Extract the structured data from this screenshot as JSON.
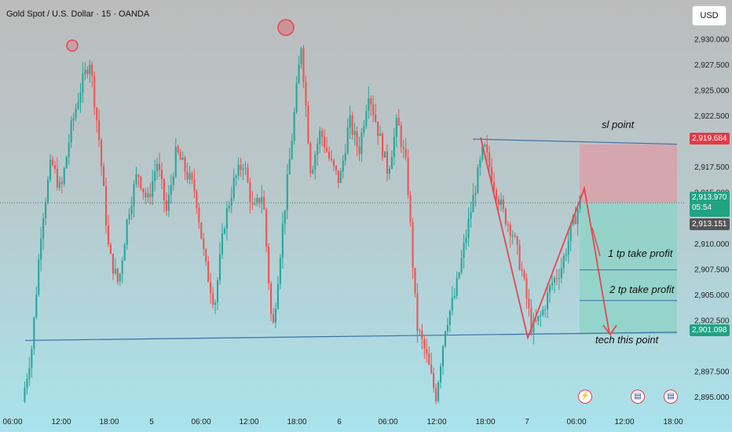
{
  "title": "Gold Spot / U.S. Dollar · 15 · OANDA",
  "currency_button": "USD",
  "colors": {
    "up": "#26a69a",
    "down": "#ef5350",
    "level_line": "#3c6fa5",
    "sl_zone": "#d9a0a8",
    "tp_zone": "#8fd3c8",
    "drawn": "#e5474f"
  },
  "price_tags": {
    "sl": "2,919.684",
    "current": "2,913.970",
    "countdown": "05:54",
    "last": "2,913.151",
    "tp": "2,901.098"
  },
  "annotations": {
    "sl": "sl point",
    "tp1": "1 tp take profit",
    "tp2": "2 tp take profit",
    "tech": "tech this point"
  },
  "events": [
    "lightning-icon",
    "us-flag-icon",
    "us-flag-icon"
  ],
  "chart_data": {
    "type": "candlestick",
    "symbol": "Gold Spot / U.S. Dollar",
    "interval": "15",
    "source": "OANDA",
    "x_tick_labels": [
      "06:00",
      "12:00",
      "18:00",
      "5",
      "06:00",
      "12:00",
      "18:00",
      "6",
      "06:00",
      "12:00",
      "18:00",
      "7",
      "06:00",
      "12:00",
      "18:00"
    ],
    "y_tick_labels": [
      "2,930.000",
      "2,927.500",
      "2,925.000",
      "2,922.500",
      "2,917.500",
      "2,915.000",
      "2,910.000",
      "2,907.500",
      "2,905.000",
      "2,902.500",
      "2,897.500",
      "2,895.000"
    ],
    "ylim": [
      2894,
      2931.5
    ],
    "price_path": [
      [
        0,
        2894.5
      ],
      [
        1,
        2900
      ],
      [
        2,
        2912
      ],
      [
        3,
        2918
      ],
      [
        4,
        2915
      ],
      [
        5,
        2921
      ],
      [
        6,
        2925
      ],
      [
        7,
        2928
      ],
      [
        8,
        2920
      ],
      [
        9,
        2909
      ],
      [
        10,
        2906
      ],
      [
        11,
        2913
      ],
      [
        12,
        2917
      ],
      [
        13,
        2914
      ],
      [
        14,
        2918
      ],
      [
        15,
        2913
      ],
      [
        16,
        2919
      ],
      [
        17,
        2917
      ],
      [
        18,
        2915
      ],
      [
        19,
        2908
      ],
      [
        20,
        2904
      ],
      [
        21,
        2912
      ],
      [
        22,
        2916
      ],
      [
        23,
        2918
      ],
      [
        24,
        2913
      ],
      [
        25,
        2915
      ],
      [
        26,
        2901
      ],
      [
        27,
        2911
      ],
      [
        28,
        2920
      ],
      [
        29,
        2929.5
      ],
      [
        30,
        2917
      ],
      [
        31,
        2921
      ],
      [
        32,
        2918
      ],
      [
        33,
        2916
      ],
      [
        34,
        2922
      ],
      [
        35,
        2919
      ],
      [
        36,
        2925
      ],
      [
        37,
        2921
      ],
      [
        38,
        2917
      ],
      [
        39,
        2922
      ],
      [
        40,
        2917
      ],
      [
        41,
        2902
      ],
      [
        42,
        2899
      ],
      [
        43,
        2895
      ],
      [
        44,
        2902
      ],
      [
        45,
        2905
      ],
      [
        46,
        2910
      ],
      [
        47,
        2915
      ],
      [
        48,
        2919.5
      ],
      [
        49,
        2916
      ],
      [
        50,
        2913
      ],
      [
        51,
        2911
      ],
      [
        52,
        2907
      ],
      [
        53,
        2901.5
      ],
      [
        54,
        2903
      ],
      [
        55,
        2906
      ],
      [
        56,
        2907.5
      ],
      [
        57,
        2911
      ],
      [
        58,
        2914.2
      ]
    ],
    "levels": [
      {
        "name": "sl point",
        "value": 2919.684
      },
      {
        "name": "2 tp take profit",
        "value": 2904.4
      },
      {
        "name": "tech this point",
        "value": 2901.098
      }
    ],
    "current_price": 2913.97,
    "last_price": 2913.151
  }
}
